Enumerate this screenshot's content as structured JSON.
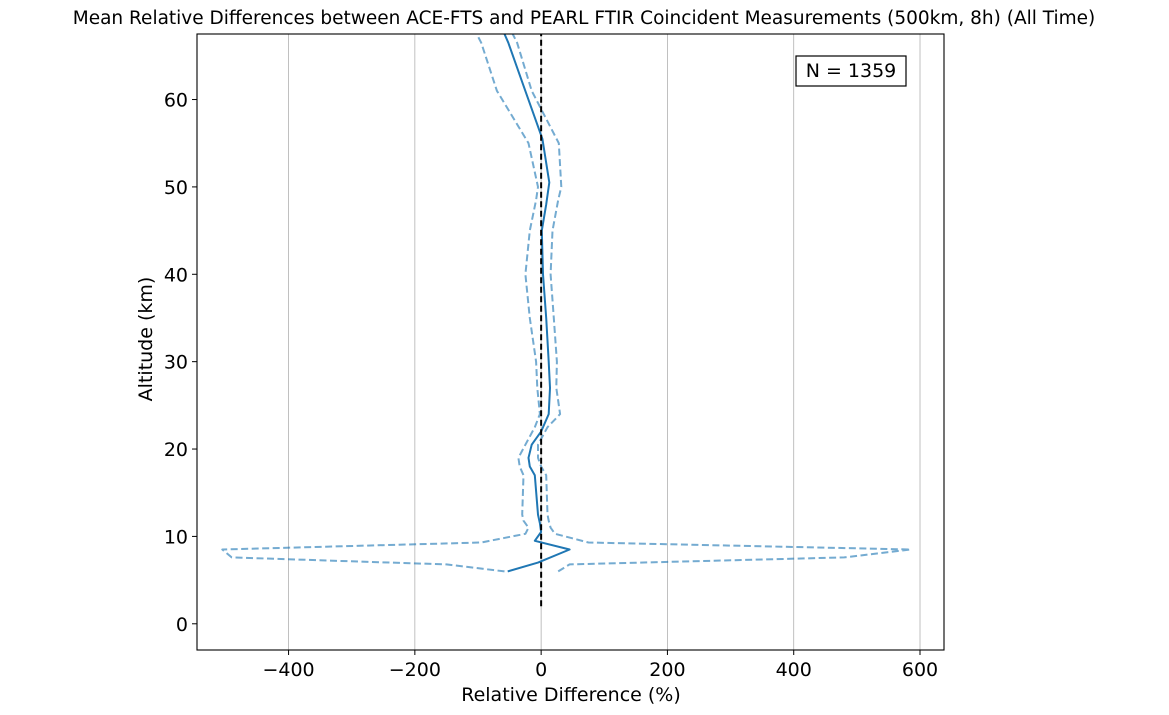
{
  "chart_data": {
    "type": "line",
    "title": "Mean Relative Differences between ACE-FTS and PEARL FTIR Coincident Measurements (500km, 8h) (All Time)",
    "xlabel": "Relative Difference (%)",
    "ylabel": "Altitude (km)",
    "xlim": [
      -545,
      638
    ],
    "ylim": [
      -3,
      67.5
    ],
    "xticks": [
      -400,
      -200,
      0,
      200,
      400,
      600
    ],
    "xtick_labels": [
      "−400",
      "−200",
      "0",
      "200",
      "400",
      "600"
    ],
    "yticks": [
      0,
      10,
      20,
      30,
      40,
      50,
      60
    ],
    "ytick_labels": [
      "0",
      "10",
      "20",
      "30",
      "40",
      "50",
      "60"
    ],
    "grid": "vertical (x) gridlines only",
    "annotation": "N = 1359",
    "reference_line": {
      "x": 0,
      "y_range": [
        2,
        67.5
      ],
      "style": "dashed",
      "color": "#000000"
    },
    "colors": {
      "mean": "#1f77b4",
      "bounds": "#1f77b4",
      "reference": "#000000"
    },
    "series": [
      {
        "style": "solid",
        "points": [
          [
            -53,
            6
          ],
          [
            -5,
            7
          ],
          [
            45,
            8.5
          ],
          [
            -10,
            9.5
          ],
          [
            0,
            10.5
          ],
          [
            -2,
            11.5
          ],
          [
            -5,
            12.5
          ],
          [
            -10,
            17
          ],
          [
            -18,
            18
          ],
          [
            -20,
            19
          ],
          [
            -15,
            20.5
          ],
          [
            0,
            22
          ],
          [
            12,
            24
          ],
          [
            14,
            27
          ],
          [
            12,
            30
          ],
          [
            8,
            35
          ],
          [
            3,
            40
          ],
          [
            1,
            45
          ],
          [
            8,
            48
          ],
          [
            13,
            50.5
          ],
          [
            2,
            55.5
          ],
          [
            -30,
            62
          ],
          [
            -52,
            66.5
          ],
          [
            -58,
            67.5
          ]
        ]
      },
      {
        "style": "dashed",
        "points": [
          [
            -58,
            6
          ],
          [
            -150,
            6.8
          ],
          [
            -490,
            7.6
          ],
          [
            -505,
            8.5
          ],
          [
            -95,
            9.3
          ],
          [
            -25,
            10.3
          ],
          [
            -20,
            11
          ],
          [
            -28,
            11.8
          ],
          [
            -30,
            12.5
          ],
          [
            -28,
            17
          ],
          [
            -34,
            18
          ],
          [
            -36,
            19
          ],
          [
            -25,
            20.5
          ],
          [
            -10,
            22.5
          ],
          [
            -2,
            24
          ],
          [
            -6,
            27
          ],
          [
            -8,
            30
          ],
          [
            -18,
            35
          ],
          [
            -25,
            40
          ],
          [
            -18,
            45
          ],
          [
            -8,
            48.5
          ],
          [
            -5,
            50
          ],
          [
            -20,
            55
          ],
          [
            -70,
            61
          ],
          [
            -95,
            66.5
          ],
          [
            -102,
            67.5
          ]
        ]
      },
      {
        "style": "dashed",
        "points": [
          [
            27,
            6
          ],
          [
            45,
            6.8
          ],
          [
            480,
            7.6
          ],
          [
            585,
            8.5
          ],
          [
            75,
            9.3
          ],
          [
            22,
            10.3
          ],
          [
            15,
            11
          ],
          [
            12,
            11.8
          ],
          [
            10,
            12.5
          ],
          [
            8,
            17
          ],
          [
            0,
            18
          ],
          [
            -5,
            19
          ],
          [
            -5,
            20.5
          ],
          [
            10,
            22.5
          ],
          [
            30,
            24
          ],
          [
            24,
            27
          ],
          [
            25,
            30
          ],
          [
            20,
            35
          ],
          [
            15,
            40
          ],
          [
            18,
            45
          ],
          [
            27,
            48.5
          ],
          [
            32,
            50
          ],
          [
            28,
            55
          ],
          [
            -15,
            61
          ],
          [
            -38,
            66.5
          ],
          [
            -45,
            67.5
          ]
        ]
      }
    ]
  }
}
